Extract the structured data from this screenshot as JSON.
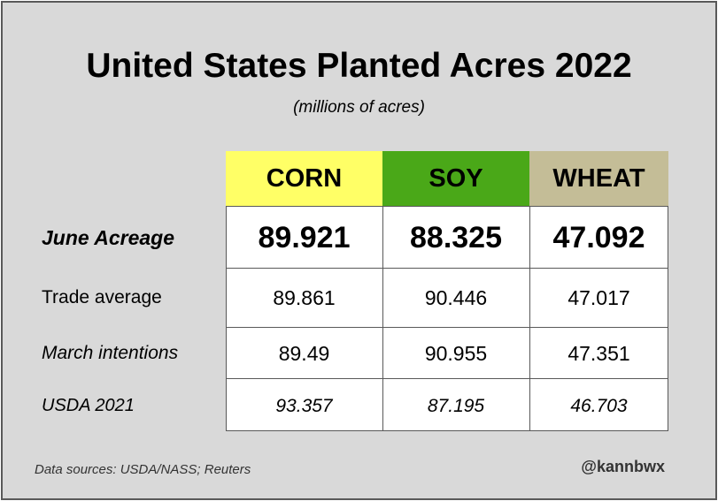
{
  "chart_data": {
    "type": "table",
    "title": "United States Planted Acres 2022",
    "subtitle": "(millions of acres)",
    "columns": [
      {
        "label": "CORN",
        "color": "#ffff66"
      },
      {
        "label": "SOY",
        "color": "#4aa818"
      },
      {
        "label": "WHEAT",
        "color": "#c4bd97"
      }
    ],
    "rows": [
      {
        "label": "June Acreage",
        "values": [
          "89.921",
          "88.325",
          "47.092"
        ]
      },
      {
        "label": "Trade average",
        "values": [
          "89.861",
          "90.446",
          "47.017"
        ]
      },
      {
        "label": "March intentions",
        "values": [
          "89.49",
          "90.955",
          "47.351"
        ]
      },
      {
        "label": "USDA 2021",
        "values": [
          "93.357",
          "87.195",
          "46.703"
        ]
      }
    ]
  },
  "footer": {
    "source": "Data sources: USDA/NASS; Reuters",
    "handle": "@kannbwx"
  }
}
